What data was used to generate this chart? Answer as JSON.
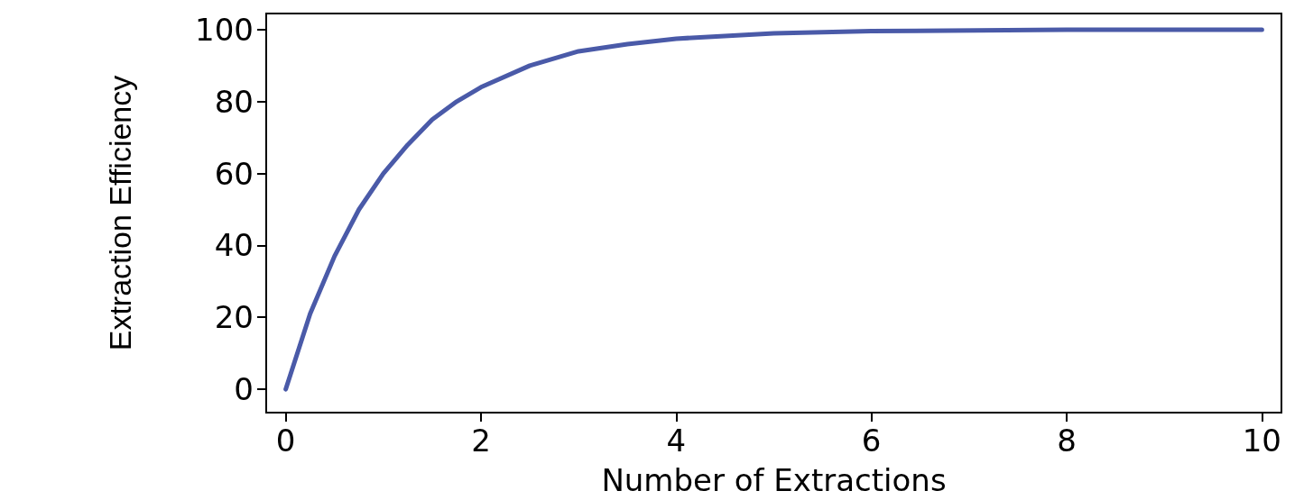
{
  "chart_data": {
    "type": "line",
    "xlabel": "Number of Extractions",
    "ylabel": "Extraction Efficiency",
    "xlim": [
      -0.2,
      10.2
    ],
    "ylim": [
      -6.5,
      104.5
    ],
    "xticks": [
      0,
      2,
      4,
      6,
      8,
      10
    ],
    "yticks": [
      0,
      20,
      40,
      60,
      80,
      100
    ],
    "marker": "none",
    "line_style": "solid",
    "series": [
      {
        "color": "#4a5aa8",
        "x": [
          0,
          0.25,
          0.5,
          0.75,
          1,
          1.25,
          1.5,
          1.75,
          2,
          2.5,
          3,
          3.5,
          4,
          5,
          6,
          8,
          10
        ],
        "values": [
          0,
          21,
          37,
          50,
          60,
          68,
          75,
          80,
          84,
          90,
          94,
          96,
          97.5,
          99,
          99.6,
          100,
          100
        ]
      }
    ]
  }
}
